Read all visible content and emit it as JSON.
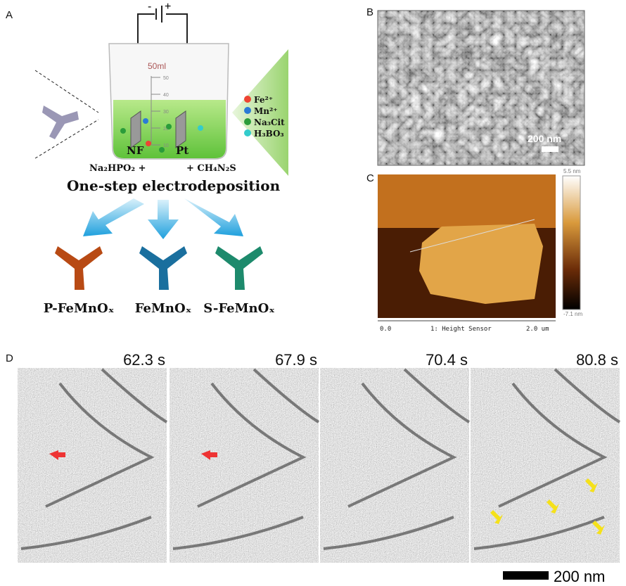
{
  "panels": {
    "a": {
      "label": "A",
      "battery_minus": "-",
      "battery_plus": "+",
      "beaker_volume": "50ml",
      "scale": [
        "50",
        "40",
        "30",
        "20",
        "10"
      ],
      "electrodes": [
        "NF",
        "Pt"
      ],
      "precursors": [
        "Fe²⁺",
        "Mn²⁺",
        "Na₃Cit",
        "H₃BO₃"
      ],
      "additive_left": "Na₂HPO₂ +",
      "additive_right": "+ CH₄N₂S",
      "method": "One-step electrodeposition",
      "products": [
        "P-FeMnOₓ",
        "FeMnOₓ",
        "S-FeMnOₓ"
      ]
    },
    "b": {
      "label": "B",
      "scale_bar": "200 nm"
    },
    "c": {
      "label": "C",
      "color_max": "5.5 nm",
      "color_min": "-7.1 nm",
      "axis_start": "0.0",
      "channel": "1: Height Sensor",
      "axis_end": "2.0 um"
    },
    "d": {
      "label": "D",
      "times": [
        "62.3 s",
        "67.9 s",
        "70.4 s",
        "80.8 s"
      ],
      "scale_bar": "200 nm"
    }
  }
}
